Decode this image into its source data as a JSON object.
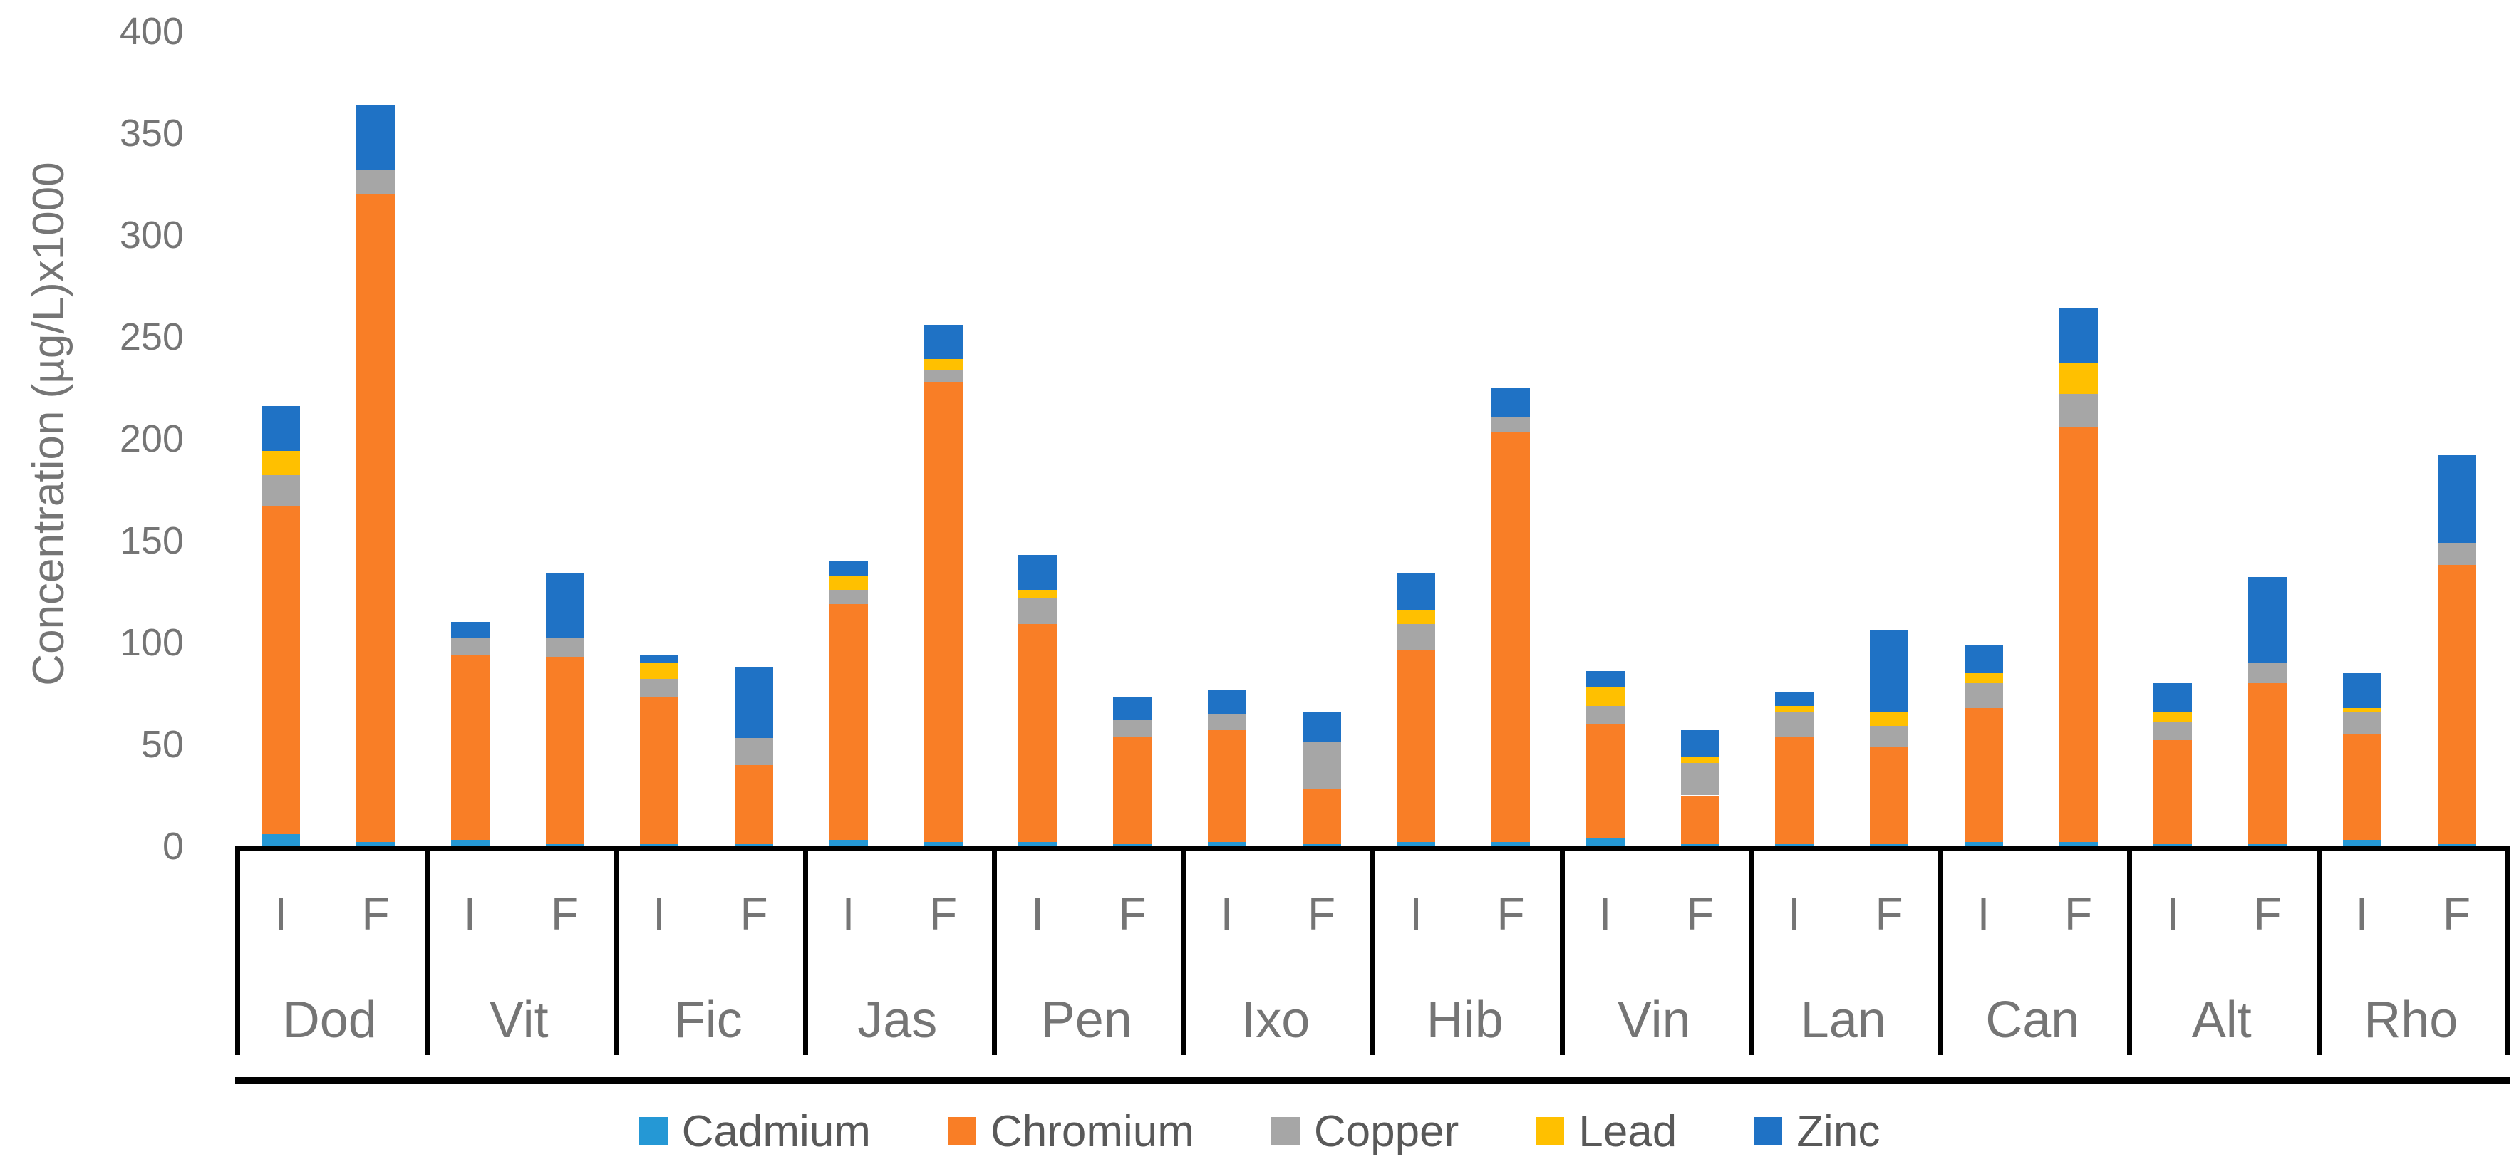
{
  "chart_data": {
    "type": "bar",
    "stacked": true,
    "title": "",
    "ylabel": "Concentration (µg/L)x1000",
    "xlabel": "",
    "ylim": [
      0,
      400
    ],
    "yticks": [
      0,
      50,
      100,
      150,
      200,
      250,
      300,
      350,
      400
    ],
    "grid": false,
    "legend_position": "bottom",
    "categories": [
      "Dod",
      "Vit",
      "Fic",
      "Jas",
      "Pen",
      "Ixo",
      "Hib",
      "Vin",
      "Lan",
      "Can",
      "Alt",
      "Rho"
    ],
    "bar_labels": [
      "I",
      "F"
    ],
    "series": [
      {
        "name": "Cadmium",
        "color": "#2598D5",
        "values": [
          [
            6,
            2
          ],
          [
            3,
            1
          ],
          [
            1,
            1
          ],
          [
            3,
            2
          ],
          [
            2,
            1
          ],
          [
            2,
            1
          ],
          [
            2,
            2
          ],
          [
            4,
            1
          ],
          [
            1,
            1
          ],
          [
            2,
            2
          ],
          [
            1,
            1
          ],
          [
            3,
            1
          ]
        ]
      },
      {
        "name": "Chromium",
        "color": "#F97E26",
        "values": [
          [
            161,
            318
          ],
          [
            91,
            92
          ],
          [
            72,
            39
          ],
          [
            116,
            226
          ],
          [
            107,
            53
          ],
          [
            55,
            27
          ],
          [
            94,
            201
          ],
          [
            56,
            24
          ],
          [
            53,
            48
          ],
          [
            66,
            204
          ],
          [
            51,
            79
          ],
          [
            52,
            137
          ]
        ]
      },
      {
        "name": "Copper",
        "color": "#A6A6A6",
        "values": [
          [
            15,
            12
          ],
          [
            8,
            9
          ],
          [
            9,
            13
          ],
          [
            7,
            6
          ],
          [
            13,
            8
          ],
          [
            8,
            23
          ],
          [
            13,
            8
          ],
          [
            9,
            16
          ],
          [
            12,
            10
          ],
          [
            12,
            16
          ],
          [
            9,
            10
          ],
          [
            11,
            11
          ]
        ]
      },
      {
        "name": "Lead",
        "color": "#FFC000",
        "values": [
          [
            12,
            0
          ],
          [
            0,
            0
          ],
          [
            8,
            0
          ],
          [
            7,
            5
          ],
          [
            4,
            0
          ],
          [
            0,
            0
          ],
          [
            7,
            0
          ],
          [
            9,
            3
          ],
          [
            3,
            7
          ],
          [
            5,
            15
          ],
          [
            5,
            0
          ],
          [
            2,
            0
          ]
        ]
      },
      {
        "name": "Zinc",
        "color": "#1F72C5",
        "values": [
          [
            22,
            32
          ],
          [
            8,
            32
          ],
          [
            4,
            35
          ],
          [
            7,
            17
          ],
          [
            17,
            11
          ],
          [
            12,
            15
          ],
          [
            18,
            14
          ],
          [
            8,
            13
          ],
          [
            7,
            40
          ],
          [
            14,
            27
          ],
          [
            14,
            42
          ],
          [
            17,
            43
          ]
        ]
      }
    ]
  }
}
